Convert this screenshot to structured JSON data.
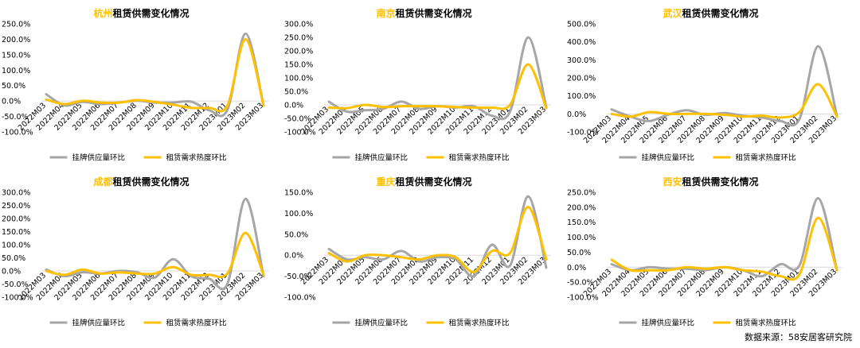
{
  "legend": {
    "supply": "挂牌供应量环比",
    "demand": "租赁需求热度环比"
  },
  "colors": {
    "supply": "#a6a6a6",
    "demand": "#ffc000",
    "city": "#ffc000",
    "axis": "#d9d9d9"
  },
  "source": "数据来源：58安居客研究院",
  "chart_data": [
    {
      "type": "line",
      "title_city": "杭州",
      "title_rest": "租赁供需变化情况",
      "categories": [
        "2022M03",
        "2022M04",
        "2022M05",
        "2022M06",
        "2022M07",
        "2022M08",
        "2022M09",
        "2022M10",
        "2022M11",
        "2022M12",
        "2023M01",
        "2023M02",
        "2023M03"
      ],
      "ylim": [
        -100,
        250
      ],
      "yticks": [
        -100,
        -50,
        0,
        50,
        100,
        150,
        200,
        250
      ],
      "ytick_labels": [
        "-100.0%",
        "-50.0%",
        "0.0%",
        "50.0%",
        "100.0%",
        "150.0%",
        "200.0%",
        "250.0%"
      ],
      "series": [
        {
          "name": "挂牌供应量环比",
          "values": [
            22,
            -14,
            -3,
            -10,
            -5,
            1,
            -5,
            -5,
            -2,
            -30,
            -29,
            218,
            -15
          ]
        },
        {
          "name": "租赁需求热度环比",
          "values": [
            5,
            -10,
            1,
            -5,
            -5,
            3,
            -3,
            -12,
            -22,
            -22,
            -15,
            200,
            -15
          ]
        }
      ]
    },
    {
      "type": "line",
      "title_city": "南京",
      "title_rest": "租赁供需变化情况",
      "categories": [
        "2022M03",
        "2022M04",
        "2022M05",
        "2022M06",
        "2022M07",
        "2022M08",
        "2022M09",
        "2022M10",
        "2022M11",
        "2022M12",
        "2023M01",
        "2023M02",
        "2023M03"
      ],
      "ylim": [
        -100,
        300
      ],
      "yticks": [
        -100,
        -50,
        0,
        50,
        100,
        150,
        200,
        250,
        300
      ],
      "ytick_labels": [
        "-100.0%",
        "-50.0%",
        "0.0%",
        "50.0%",
        "100.0%",
        "150.0%",
        "200.0%",
        "250.0%",
        "300.0%"
      ],
      "series": [
        {
          "name": "挂牌供应量环比",
          "values": [
            12,
            -25,
            -20,
            -15,
            12,
            -15,
            -5,
            -10,
            -5,
            -40,
            -25,
            250,
            -8
          ]
        },
        {
          "name": "租赁需求热度环比",
          "values": [
            -10,
            -12,
            0,
            -8,
            -5,
            -5,
            -5,
            -8,
            -10,
            -10,
            0,
            150,
            -12
          ]
        }
      ]
    },
    {
      "type": "line",
      "title_city": "武汉",
      "title_rest": "租赁供需变化情况",
      "categories": [
        "2022M03",
        "2022M04",
        "2022M05",
        "2022M06",
        "2022M07",
        "2022M08",
        "2022M09",
        "2022M10",
        "2022M11",
        "2022M12",
        "2023M01",
        "2023M02",
        "2023M03"
      ],
      "ylim": [
        -100,
        500
      ],
      "yticks": [
        -100,
        0,
        100,
        200,
        300,
        400,
        500
      ],
      "ytick_labels": [
        "-100.0%",
        "0.0%",
        "100.0%",
        "200.0%",
        "300.0%",
        "400.0%",
        "500.0%"
      ],
      "series": [
        {
          "name": "挂牌供应量环比",
          "values": [
            25,
            -15,
            -40,
            -5,
            20,
            -5,
            5,
            -10,
            -20,
            -40,
            -30,
            375,
            -10
          ]
        },
        {
          "name": "租赁需求热度环比",
          "values": [
            0,
            -15,
            10,
            0,
            0,
            0,
            -5,
            -15,
            -10,
            -20,
            10,
            165,
            -15
          ]
        }
      ]
    },
    {
      "type": "line",
      "title_city": "成都",
      "title_rest": "租赁供需变化情况",
      "categories": [
        "2022M03",
        "2022M04",
        "2022M05",
        "2022M06",
        "2022M07",
        "2022M08",
        "2022M09",
        "2022M10",
        "2022M11",
        "2022M12",
        "2023M01",
        "2023M02",
        "2023M03"
      ],
      "ylim": [
        -100,
        300
      ],
      "yticks": [
        -100,
        -50,
        0,
        50,
        100,
        150,
        200,
        250,
        300
      ],
      "ytick_labels": [
        "-100.0%",
        "-50.0%",
        "0.0%",
        "50.0%",
        "100.0%",
        "150.0%",
        "200.0%",
        "250.0%",
        "300.0%"
      ],
      "series": [
        {
          "name": "挂牌供应量环比",
          "values": [
            5,
            -20,
            -5,
            -10,
            0,
            -5,
            -25,
            45,
            -20,
            -30,
            -50,
            275,
            -20
          ]
        },
        {
          "name": "租赁需求热度环比",
          "values": [
            0,
            -15,
            5,
            -10,
            -5,
            -10,
            -10,
            15,
            -15,
            -15,
            -10,
            145,
            -15
          ]
        }
      ]
    },
    {
      "type": "line",
      "title_city": "重庆",
      "title_rest": "租赁供需变化情况",
      "categories": [
        "2022M03",
        "2022M04",
        "2022M05",
        "2022M06",
        "2022M07",
        "2022M08",
        "2022M09",
        "2022M10",
        "2022M11",
        "2022M12",
        "2023M01",
        "2023M02",
        "2023M03"
      ],
      "ylim": [
        -100,
        150
      ],
      "yticks": [
        -100,
        -50,
        0,
        50,
        100,
        150
      ],
      "ytick_labels": [
        "-100.0%",
        "-50.0%",
        "0.0%",
        "50.0%",
        "100.0%",
        "150.0%"
      ],
      "series": [
        {
          "name": "挂牌供应量环比",
          "values": [
            15,
            -10,
            -5,
            -10,
            10,
            -15,
            -5,
            -10,
            -50,
            25,
            -25,
            140,
            -30
          ]
        },
        {
          "name": "租赁需求热度环比",
          "values": [
            5,
            -15,
            0,
            0,
            -5,
            -10,
            0,
            -5,
            -40,
            10,
            5,
            115,
            -10
          ]
        }
      ]
    },
    {
      "type": "line",
      "title_city": "西安",
      "title_rest": "租赁供需变化情况",
      "categories": [
        "2022M03",
        "2022M04",
        "2022M05",
        "2022M06",
        "2022M07",
        "2022M08",
        "2022M09",
        "2022M10",
        "2022M11",
        "2022M12",
        "2023M01",
        "2023M02",
        "2023M03"
      ],
      "ylim": [
        -100,
        250
      ],
      "yticks": [
        -100,
        -50,
        0,
        50,
        100,
        150,
        200,
        250
      ],
      "ytick_labels": [
        "-100.0%",
        "-50.0%",
        "0.0%",
        "50.0%",
        "100.0%",
        "150.0%",
        "200.0%",
        "250.0%"
      ],
      "series": [
        {
          "name": "挂牌供应量环比",
          "values": [
            10,
            -10,
            0,
            -5,
            -5,
            -10,
            0,
            -10,
            -30,
            10,
            5,
            230,
            -10
          ]
        },
        {
          "name": "租赁需求热度环比",
          "values": [
            25,
            -10,
            -10,
            -10,
            0,
            -5,
            0,
            -10,
            -15,
            -30,
            -25,
            165,
            -10
          ]
        }
      ]
    }
  ]
}
